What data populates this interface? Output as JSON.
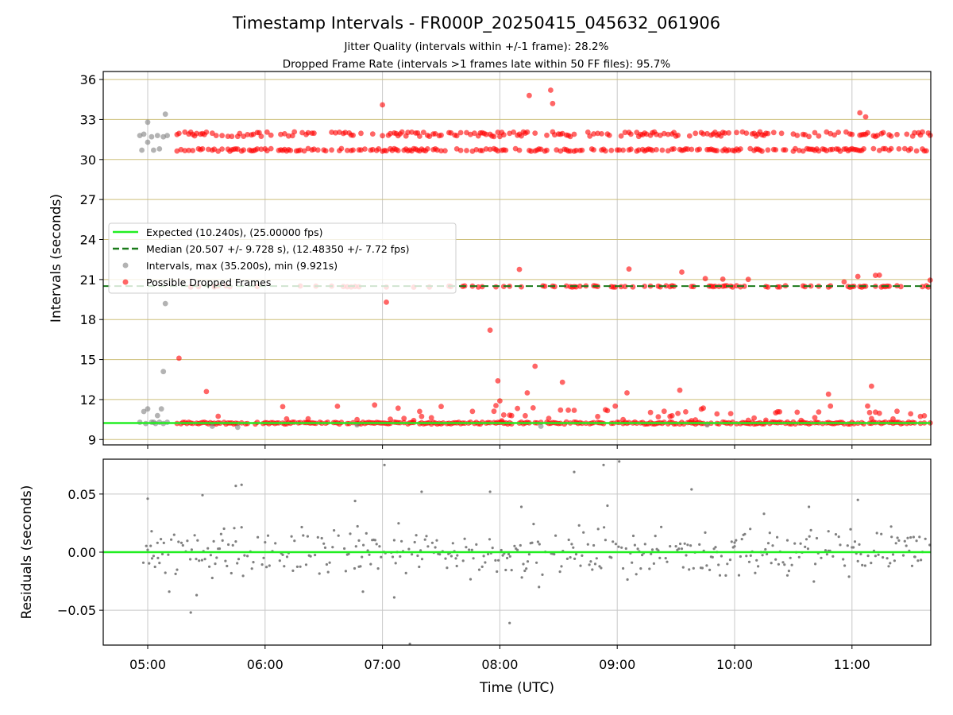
{
  "chart_data": [
    {
      "type": "scatter",
      "title": "Timestamp Intervals - FR000P_20250415_045632_061906",
      "subtitle_lines": [
        "Jitter Quality (intervals within +/-1 frame): 28.2%",
        "Dropped Frame Rate (intervals >1 frames late within 50 FF files): 95.7%"
      ],
      "xlabel": "",
      "ylabel": "Intervals (seconds)",
      "x_tick_labels": [
        "05:00",
        "06:00",
        "07:00",
        "08:00",
        "09:00",
        "10:00",
        "11:00"
      ],
      "y_ticks": [
        9,
        12,
        15,
        18,
        21,
        24,
        27,
        30,
        33,
        36
      ],
      "ylim": [
        8.6,
        36.6
      ],
      "grid": true,
      "legend_position": "center-left",
      "reference_lines": {
        "expected": {
          "label": "Expected (10.240s), (25.00000 fps)",
          "value": 10.24,
          "color": "#22ee22",
          "style": "solid"
        },
        "median": {
          "label": "Median (20.507 +/- 9.728 s), (12.48350 +/- 7.72 fps)",
          "value": 20.507,
          "color": "#1a7a1a",
          "style": "dashed"
        }
      },
      "series": [
        {
          "name": "Intervals, max (35.200s), min (9.921s)",
          "color": "#808080",
          "approx_points": [
            [
              "04:56",
              31.8
            ],
            [
              "04:57",
              30.7
            ],
            [
              "04:58",
              31.9
            ],
            [
              "05:00",
              32.8
            ],
            [
              "05:00",
              31.3
            ],
            [
              "05:02",
              31.7
            ],
            [
              "05:03",
              30.7
            ],
            [
              "05:05",
              31.8
            ],
            [
              "05:06",
              30.8
            ],
            [
              "05:08",
              31.7
            ],
            [
              "05:09",
              33.4
            ],
            [
              "05:10",
              31.8
            ],
            [
              "04:58",
              11.1
            ],
            [
              "05:00",
              11.3
            ],
            [
              "05:03",
              10.3
            ],
            [
              "05:05",
              10.8
            ],
            [
              "05:07",
              11.3
            ],
            [
              "05:08",
              14.1
            ],
            [
              "05:09",
              19.2
            ],
            [
              "04:56",
              10.3
            ],
            [
              "04:59",
              10.2
            ],
            [
              "05:02",
              10.3
            ],
            [
              "05:04",
              10.2
            ],
            [
              "05:06",
              10.3
            ],
            [
              "05:08",
              10.2
            ],
            [
              "05:10",
              10.3
            ],
            [
              "05:33",
              10.0
            ],
            [
              "05:46",
              9.92
            ],
            [
              "06:47",
              10.1
            ],
            [
              "08:21",
              10.0
            ],
            [
              "09:46",
              10.1
            ]
          ]
        },
        {
          "name": "Possible Dropped Frames",
          "color": "#ff0000",
          "bands_seconds": [
            10.24,
            20.48,
            30.72,
            31.9
          ],
          "approx_outliers": [
            [
              "05:16",
              15.1
            ],
            [
              "05:30",
              12.6
            ],
            [
              "07:00",
              34.1
            ],
            [
              "07:02",
              19.3
            ],
            [
              "07:55",
              17.2
            ],
            [
              "07:59",
              13.4
            ],
            [
              "08:00",
              11.9
            ],
            [
              "08:14",
              12.5
            ],
            [
              "08:15",
              34.8
            ],
            [
              "08:18",
              14.5
            ],
            [
              "08:26",
              35.2
            ],
            [
              "08:27",
              34.2
            ],
            [
              "08:32",
              13.3
            ],
            [
              "09:05",
              12.5
            ],
            [
              "09:32",
              12.7
            ],
            [
              "10:48",
              12.4
            ],
            [
              "11:04",
              33.5
            ],
            [
              "11:07",
              33.2
            ],
            [
              "11:10",
              13.0
            ]
          ]
        }
      ]
    },
    {
      "type": "scatter",
      "xlabel": "Time (UTC)",
      "ylabel": "Residuals (seconds)",
      "x_tick_labels": [
        "05:00",
        "06:00",
        "07:00",
        "08:00",
        "09:00",
        "10:00",
        "11:00"
      ],
      "y_ticks": [
        "0.05",
        "0.00",
        "−0.05"
      ],
      "y_tick_values": [
        0.05,
        0.0,
        -0.05
      ],
      "ylim": [
        -0.08,
        0.08
      ],
      "grid": true,
      "zero_line_color": "#22ee22",
      "series": [
        {
          "color": "#808080",
          "approx_points": [
            [
              "05:00",
              0.046
            ],
            [
              "05:02",
              0.018
            ],
            [
              "05:05",
              0.008
            ],
            [
              "05:11",
              -0.034
            ],
            [
              "05:22",
              -0.052
            ],
            [
              "05:25",
              -0.037
            ],
            [
              "05:28",
              0.049
            ],
            [
              "05:45",
              0.057
            ],
            [
              "05:48",
              0.058
            ],
            [
              "06:29",
              0.012
            ],
            [
              "06:46",
              0.044
            ],
            [
              "06:48",
              0.01
            ],
            [
              "06:50",
              -0.034
            ],
            [
              "07:01",
              0.075
            ],
            [
              "07:06",
              -0.039
            ],
            [
              "07:14",
              -0.079
            ],
            [
              "07:20",
              0.052
            ],
            [
              "07:38",
              -0.012
            ],
            [
              "07:55",
              0.052
            ],
            [
              "08:05",
              -0.061
            ],
            [
              "08:11",
              0.039
            ],
            [
              "08:20",
              -0.03
            ],
            [
              "08:38",
              0.069
            ],
            [
              "08:53",
              0.075
            ],
            [
              "08:55",
              0.04
            ],
            [
              "09:01",
              0.078
            ],
            [
              "09:38",
              0.054
            ],
            [
              "10:00",
              0.005
            ],
            [
              "10:08",
              0.02
            ],
            [
              "10:15",
              0.033
            ],
            [
              "10:27",
              -0.02
            ],
            [
              "10:38",
              0.039
            ],
            [
              "10:48",
              0.018
            ],
            [
              "11:03",
              0.045
            ],
            [
              "11:20",
              0.022
            ],
            [
              "11:32",
              -0.004
            ]
          ]
        }
      ]
    }
  ]
}
